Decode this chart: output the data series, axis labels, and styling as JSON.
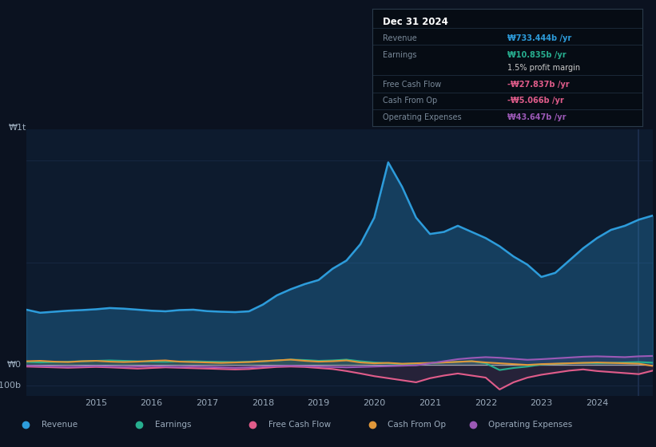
{
  "bg_color": "#0b1220",
  "chart_bg": "#0d1b2e",
  "grid_color": "#1e3050",
  "text_color": "#9aaabb",
  "white_color": "#ffffff",
  "tooltip_title": "Dec 31 2024",
  "tooltip_bg": "#060c14",
  "tooltip_border": "#2a3a4a",
  "ylim_min": -150,
  "ylim_max": 1150,
  "years": [
    2013.75,
    2014.0,
    2014.25,
    2014.5,
    2014.75,
    2015.0,
    2015.25,
    2015.5,
    2015.75,
    2016.0,
    2016.25,
    2016.5,
    2016.75,
    2017.0,
    2017.25,
    2017.5,
    2017.75,
    2018.0,
    2018.25,
    2018.5,
    2018.75,
    2019.0,
    2019.25,
    2019.5,
    2019.75,
    2020.0,
    2020.25,
    2020.5,
    2020.75,
    2021.0,
    2021.25,
    2021.5,
    2021.75,
    2022.0,
    2022.25,
    2022.5,
    2022.75,
    2023.0,
    2023.25,
    2023.5,
    2023.75,
    2024.0,
    2024.25,
    2024.5,
    2024.75,
    2025.0
  ],
  "revenue": [
    270,
    255,
    260,
    265,
    268,
    272,
    278,
    275,
    270,
    265,
    262,
    268,
    270,
    263,
    260,
    258,
    262,
    295,
    340,
    370,
    395,
    415,
    470,
    510,
    590,
    720,
    990,
    870,
    720,
    640,
    650,
    680,
    650,
    620,
    580,
    530,
    490,
    430,
    450,
    510,
    570,
    620,
    660,
    680,
    710,
    730
  ],
  "earnings": [
    15,
    12,
    14,
    16,
    18,
    20,
    22,
    20,
    18,
    16,
    15,
    17,
    18,
    16,
    15,
    14,
    16,
    18,
    22,
    26,
    24,
    20,
    22,
    26,
    18,
    12,
    8,
    4,
    6,
    8,
    12,
    15,
    18,
    8,
    -25,
    -15,
    -8,
    2,
    5,
    8,
    10,
    8,
    10,
    12,
    14,
    11
  ],
  "free_cash": [
    -8,
    -10,
    -12,
    -14,
    -12,
    -10,
    -12,
    -15,
    -18,
    -15,
    -12,
    -14,
    -16,
    -18,
    -20,
    -22,
    -20,
    -15,
    -10,
    -8,
    -10,
    -15,
    -20,
    -30,
    -42,
    -55,
    -65,
    -75,
    -85,
    -65,
    -52,
    -42,
    -52,
    -62,
    -120,
    -85,
    -62,
    -48,
    -38,
    -28,
    -22,
    -30,
    -35,
    -40,
    -45,
    -28
  ],
  "cash_from_op": [
    18,
    20,
    16,
    14,
    18,
    20,
    16,
    14,
    16,
    20,
    22,
    16,
    14,
    12,
    10,
    12,
    14,
    18,
    22,
    26,
    20,
    16,
    18,
    22,
    12,
    8,
    10,
    6,
    8,
    10,
    12,
    15,
    18,
    12,
    8,
    4,
    0,
    4,
    6,
    8,
    10,
    12,
    10,
    8,
    6,
    -5
  ],
  "op_expenses": [
    -4,
    -6,
    -8,
    -10,
    -8,
    -6,
    -8,
    -10,
    -8,
    -6,
    -8,
    -10,
    -8,
    -10,
    -12,
    -14,
    -12,
    -8,
    -6,
    -4,
    -6,
    -8,
    -10,
    -12,
    -10,
    -8,
    -6,
    -4,
    -2,
    8,
    18,
    28,
    34,
    38,
    35,
    30,
    25,
    28,
    32,
    36,
    40,
    42,
    40,
    38,
    42,
    44
  ],
  "revenue_color": "#2d9cdb",
  "earnings_color": "#27ae8f",
  "free_cash_color": "#e05c8a",
  "cash_from_op_color": "#e0973a",
  "op_expenses_color": "#9b59b6",
  "xtick_positions": [
    2015,
    2016,
    2017,
    2018,
    2019,
    2020,
    2021,
    2022,
    2023,
    2024
  ],
  "xtick_labels": [
    "2015",
    "2016",
    "2017",
    "2018",
    "2019",
    "2020",
    "2021",
    "2022",
    "2023",
    "2024"
  ],
  "vline_x": 2024.75,
  "legend": [
    {
      "label": "Revenue",
      "color": "#2d9cdb"
    },
    {
      "label": "Earnings",
      "color": "#27ae8f"
    },
    {
      "label": "Free Cash Flow",
      "color": "#e05c8a"
    },
    {
      "label": "Cash From Op",
      "color": "#e0973a"
    },
    {
      "label": "Operating Expenses",
      "color": "#9b59b6"
    }
  ],
  "tooltip_rows": [
    {
      "label": "Revenue",
      "value": "₩733.444b /yr",
      "value_color": "#2d9cdb",
      "dim": true
    },
    {
      "label": "Earnings",
      "value": "₩10.835b /yr",
      "value_color": "#27ae8f",
      "dim": true
    },
    {
      "label": "",
      "value": "1.5% profit margin",
      "value_color": "#cccccc",
      "dim": false
    },
    {
      "label": "Free Cash Flow",
      "value": "-₩27.837b /yr",
      "value_color": "#e05c8a",
      "dim": true
    },
    {
      "label": "Cash From Op",
      "value": "-₩5.066b /yr",
      "value_color": "#e05c8a",
      "dim": true
    },
    {
      "label": "Operating Expenses",
      "value": "₩43.647b /yr",
      "value_color": "#9b59b6",
      "dim": true
    }
  ]
}
